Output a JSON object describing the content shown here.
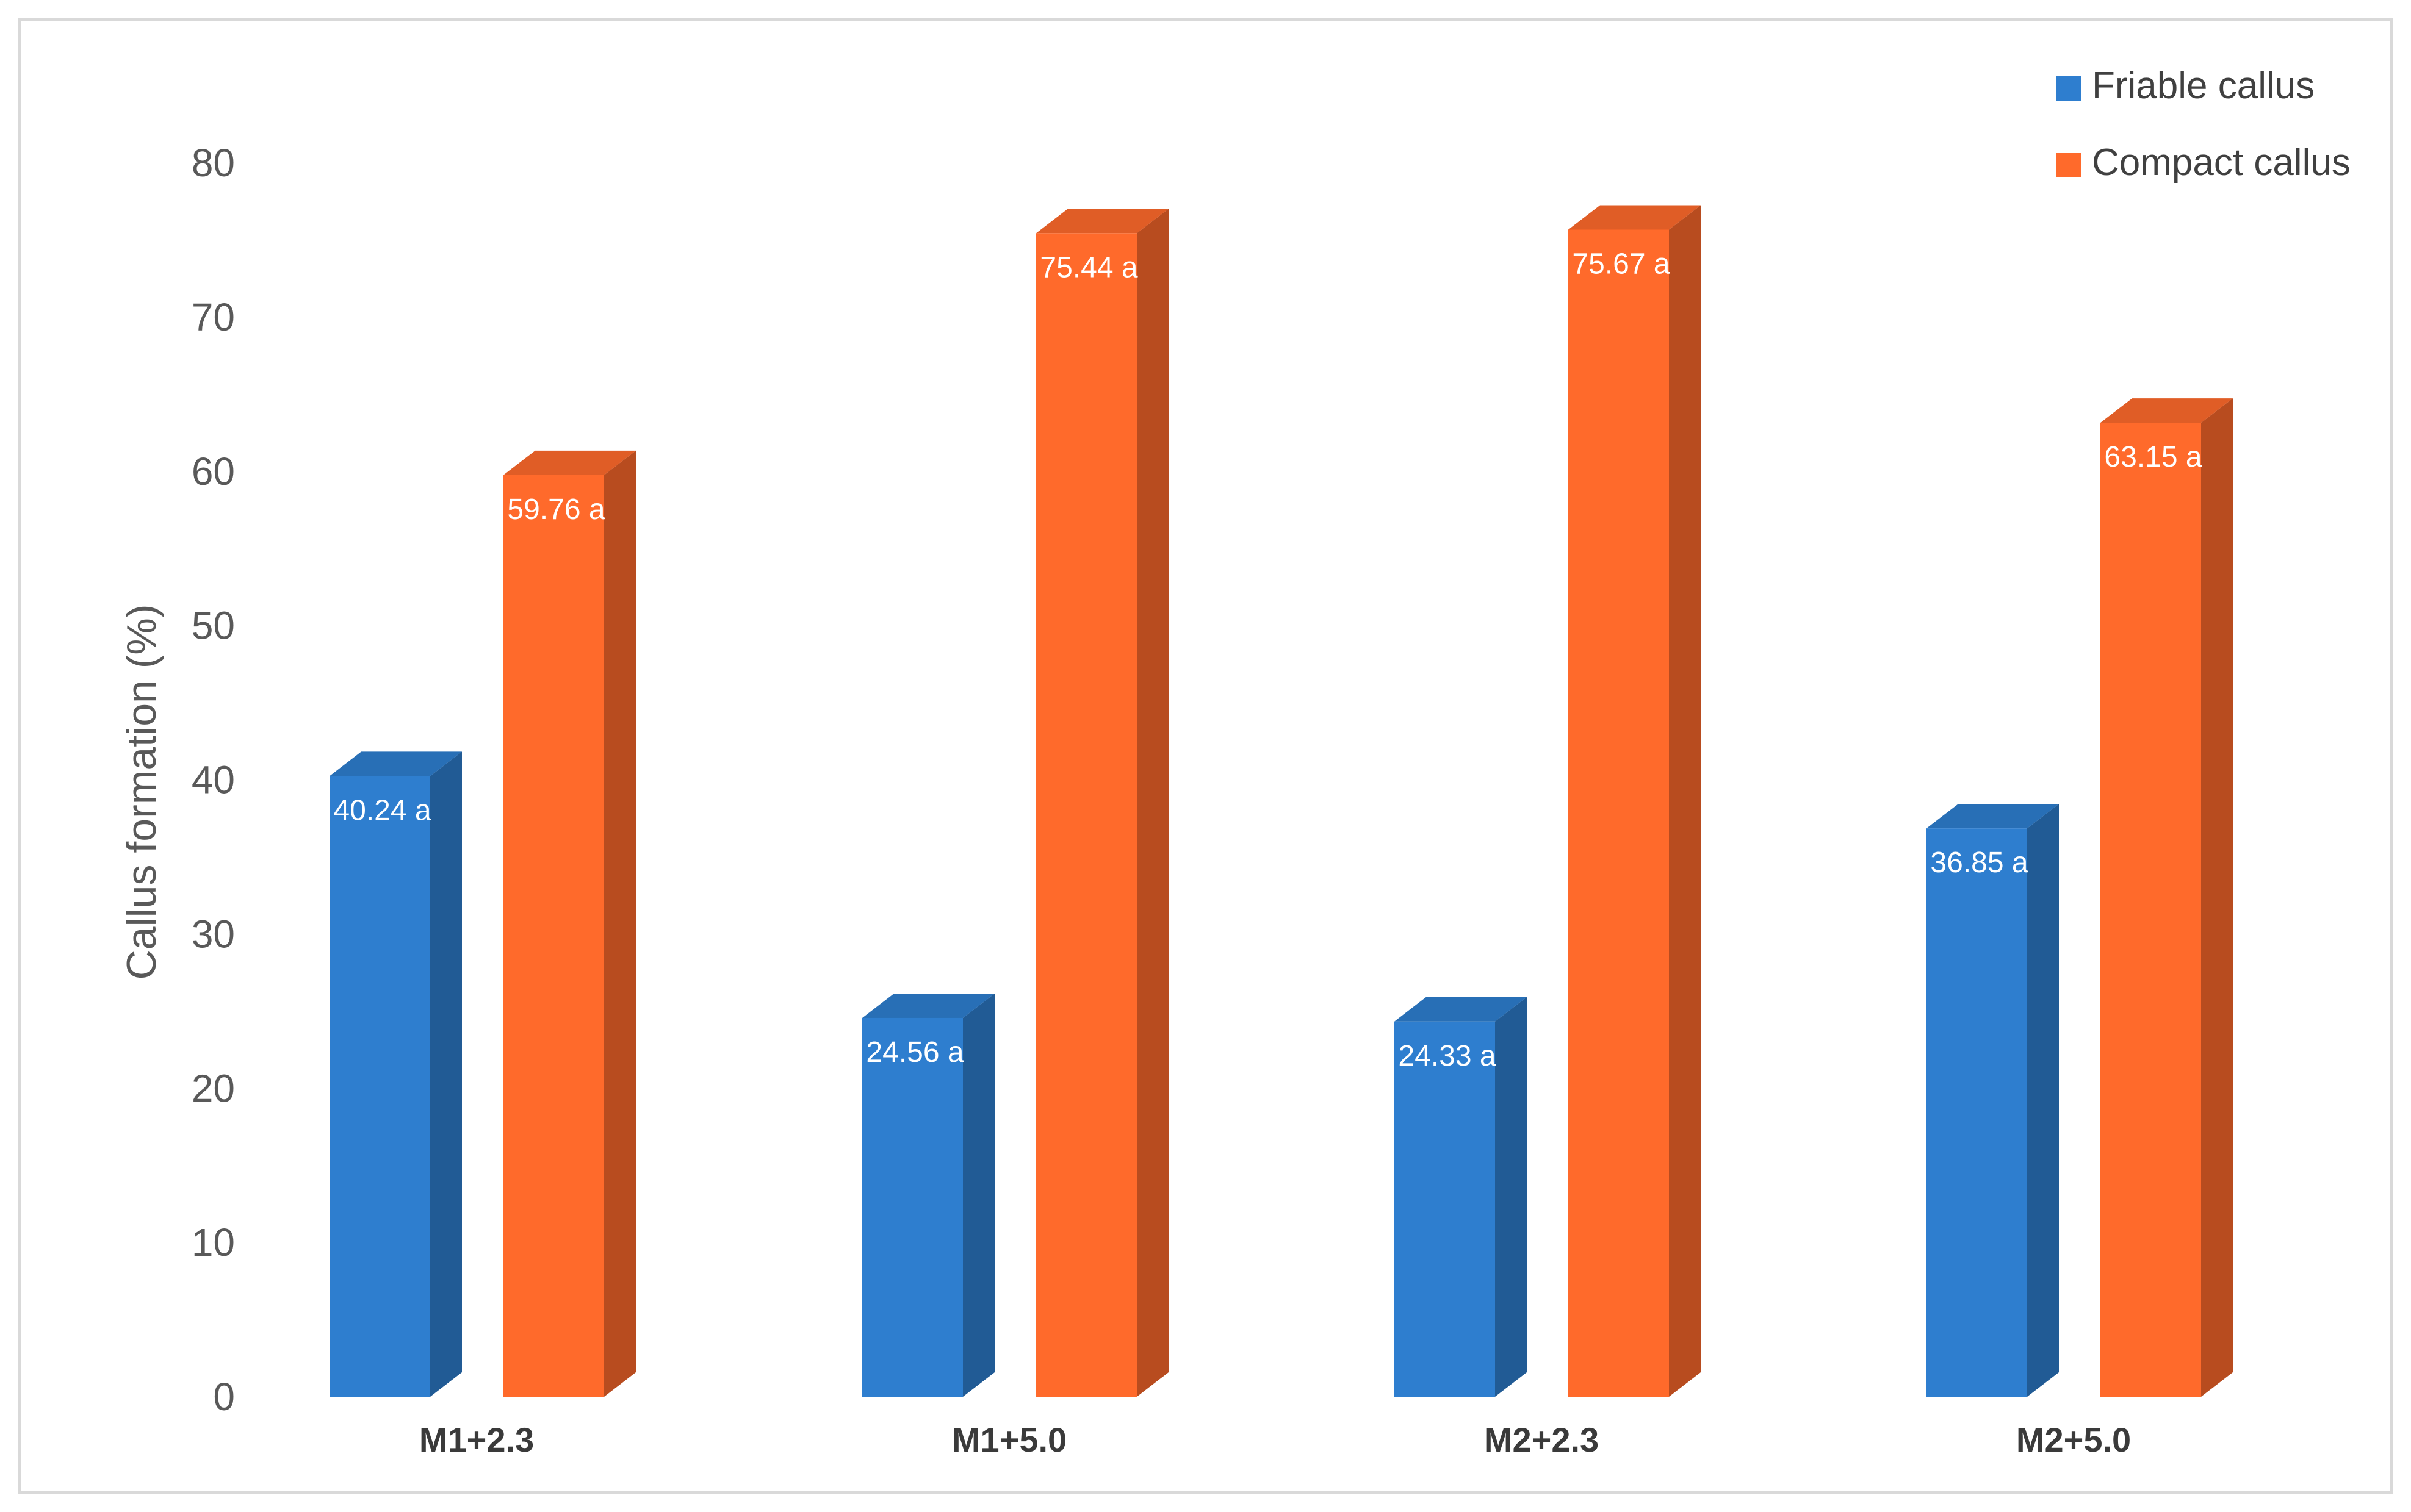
{
  "chart_data": {
    "type": "bar",
    "title": "",
    "xlabel": "",
    "ylabel": "Callus formation (%)",
    "ylim": [
      0,
      80
    ],
    "yticks": [
      0,
      10,
      20,
      30,
      40,
      50,
      60,
      70,
      80
    ],
    "grid": false,
    "legend_position": "top-right",
    "categories": [
      "M1+2.3",
      "M1+5.0",
      "M2+2.3",
      "M2+5.0"
    ],
    "series": [
      {
        "name": "Friable callus",
        "color": "#2e7ecf",
        "values": [
          40.24,
          24.56,
          24.33,
          36.85
        ],
        "labels": [
          "40.24 a",
          "24.56 a",
          "24.33 a",
          "36.85 a"
        ]
      },
      {
        "name": "Compact callus",
        "color": "#ff6a2b",
        "values": [
          59.76,
          75.44,
          75.67,
          63.15
        ],
        "labels": [
          "59.76 a",
          "75.44 a",
          "75.67 a",
          "63.15 a"
        ]
      }
    ]
  }
}
